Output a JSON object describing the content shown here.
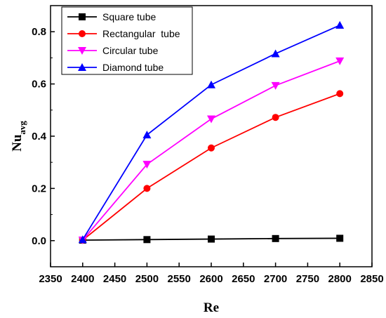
{
  "chart_data": {
    "type": "line",
    "xlabel": "Re",
    "ylabel_main": "Nu",
    "ylabel_sub": "avg",
    "xlim": [
      2350,
      2850
    ],
    "ylim": [
      -0.1,
      0.9
    ],
    "xticks": [
      "2350",
      "2400",
      "2450",
      "2500",
      "2550",
      "2600",
      "2650",
      "2700",
      "2750",
      "2800",
      "2850"
    ],
    "yticks": [
      "0.0",
      "0.2",
      "0.4",
      "0.6",
      "0.8"
    ],
    "x": [
      2400,
      2500,
      2600,
      2700,
      2800
    ],
    "legend_position": "top-left",
    "grid": false,
    "series": [
      {
        "name": "Square tube",
        "color": "#000000",
        "marker": "square",
        "values": [
          0.002,
          0.004,
          0.006,
          0.008,
          0.009
        ]
      },
      {
        "name": "Rectangular  tube",
        "color": "#ff0000",
        "marker": "circle",
        "values": [
          0.002,
          0.2,
          0.355,
          0.472,
          0.563
        ]
      },
      {
        "name": "Circular tube",
        "color": "#ff00ff",
        "marker": "triangle-down",
        "values": [
          0.002,
          0.292,
          0.466,
          0.594,
          0.688
        ]
      },
      {
        "name": "Diamond tube",
        "color": "#0000ff",
        "marker": "triangle-up",
        "values": [
          0.004,
          0.405,
          0.597,
          0.716,
          0.825
        ]
      }
    ]
  }
}
